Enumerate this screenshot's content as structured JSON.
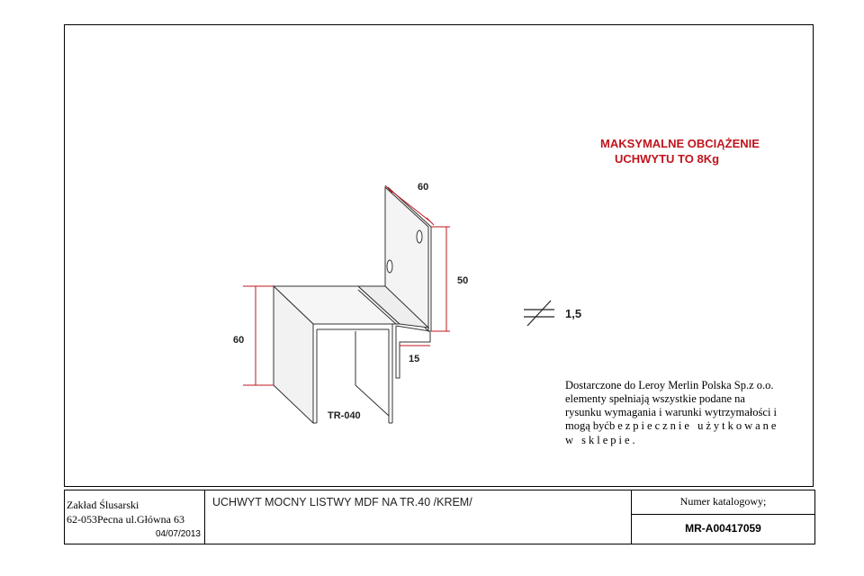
{
  "drawing": {
    "part_label": "TR-040",
    "dimensions": {
      "top_width": "60",
      "vertical_height": "50",
      "bottom_depth": "15",
      "left_height": "60",
      "thickness": "1,5"
    }
  },
  "warning": {
    "line1": "MAKSYMALNE OBCIĄŻENIE",
    "line2": "UCHWYTU TO 8Kg"
  },
  "note": {
    "line1": "Dostarczone do Leroy Merlin Polska Sp.z o.o.",
    "line2": "elementy spełniają wszystkie podane na",
    "line3": "rysunku wymagania i warunki wytrzymałości i",
    "line4a": "mogą być",
    "line4b": "bezpiecznie użytkowane",
    "line5": "w sklepie."
  },
  "title_block": {
    "company_line1": "Zakład Ślusarski",
    "company_line2": "62-053Pecna ul.Główna 63",
    "date": "04/07/2013",
    "product_title": "UCHWYT MOCNY LISTWY MDF NA TR.40 /KREM/",
    "catalog_label": "Numer katalogowy;",
    "catalog_number": "MR-A00417059"
  },
  "colors": {
    "dimension_red": "#c0141c",
    "outline": "#222222"
  }
}
